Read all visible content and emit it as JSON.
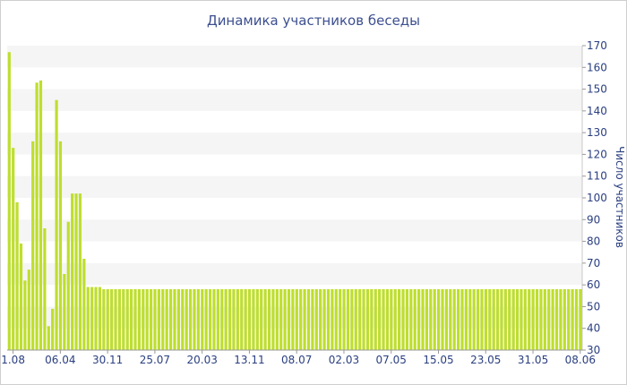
{
  "chart_data": {
    "type": "bar",
    "title": "Динамика участников беседы",
    "ylabel": "Число участников",
    "xlabel": "",
    "ylim": [
      30,
      170
    ],
    "yticks": [
      30,
      40,
      50,
      60,
      70,
      80,
      90,
      100,
      110,
      120,
      130,
      140,
      150,
      160,
      170
    ],
    "y_axis_position": "right",
    "grid": "alternating horizontal bands",
    "legend": "none",
    "bar_color": "#bede2f",
    "band_color": "#f5f5f5",
    "xtick_labels": [
      "1.08",
      "06.04",
      "30.11",
      "25.07",
      "20.03",
      "13.11",
      "08.07",
      "02.03",
      "07.05",
      "15.05",
      "23.05",
      "31.05",
      "08.06"
    ],
    "xtick_indices": [
      1,
      13,
      25,
      37,
      49,
      61,
      73,
      85,
      97,
      109,
      121,
      133,
      145
    ],
    "values": [
      167,
      123,
      98,
      79,
      62,
      67,
      126,
      153,
      154,
      86,
      41,
      49,
      145,
      126,
      65,
      89,
      102,
      102,
      102,
      72,
      59,
      59,
      59,
      59,
      58,
      58,
      58,
      58,
      58,
      58,
      58,
      58,
      58,
      58,
      58,
      58,
      58,
      58,
      58,
      58,
      58,
      58,
      58,
      58,
      58,
      58,
      58,
      58,
      58,
      58,
      58,
      58,
      58,
      58,
      58,
      58,
      58,
      58,
      58,
      58,
      58,
      58,
      58,
      58,
      58,
      58,
      58,
      58,
      58,
      58,
      58,
      58,
      58,
      58,
      58,
      58,
      58,
      58,
      58,
      58,
      58,
      58,
      58,
      58,
      58,
      58,
      58,
      58,
      58,
      58,
      58,
      58,
      58,
      58,
      58,
      58,
      58,
      58,
      58,
      58,
      58,
      58,
      58,
      58,
      58,
      58,
      58,
      58,
      58,
      58,
      58,
      58,
      58,
      58,
      58,
      58,
      58,
      58,
      58,
      58,
      58,
      58,
      58,
      58,
      58,
      58,
      58,
      58,
      58,
      58,
      58,
      58,
      58,
      58,
      58,
      58,
      58,
      58,
      58,
      58,
      58,
      58,
      58,
      58,
      58,
      58
    ]
  }
}
